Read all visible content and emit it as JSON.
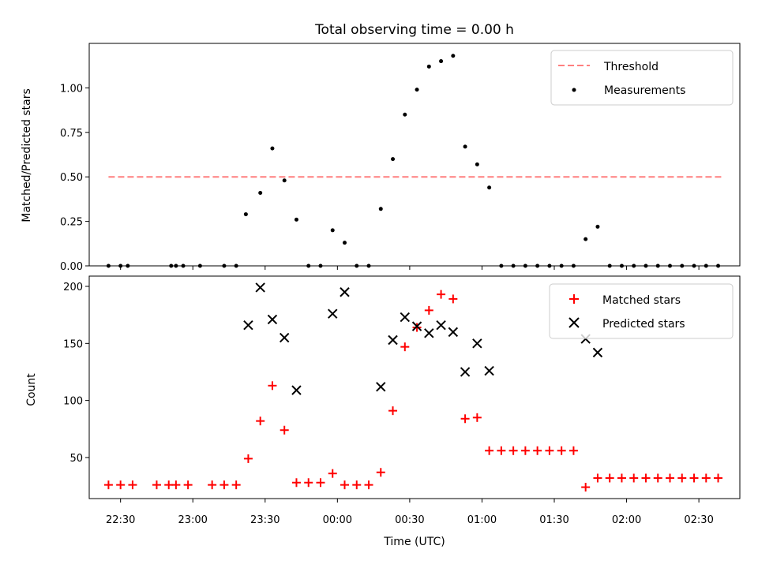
{
  "chart_data": [
    {
      "type": "scatter",
      "title": "Total observing time = 0.00 h",
      "ylabel": "Matched/Predicted stars",
      "xlabel": "",
      "xlim": [
        "22:17",
        "02:47"
      ],
      "ylim": [
        0,
        1.25
      ],
      "yticks": [
        "0.00",
        "0.25",
        "0.50",
        "0.75",
        "1.00"
      ],
      "legend_position": "upper right",
      "threshold": {
        "name": "Threshold",
        "value": 0.5,
        "x_start": "22:25",
        "x_end": "02:40",
        "color": "#ff7f7f",
        "style": "dashed"
      },
      "series": [
        {
          "name": "Measurements",
          "color": "#000000",
          "marker": "dot",
          "points": [
            [
              "22:25",
              0
            ],
            [
              "22:30",
              0
            ],
            [
              "22:33",
              0
            ],
            [
              "22:51",
              0
            ],
            [
              "22:53",
              0
            ],
            [
              "22:56",
              0
            ],
            [
              "23:03",
              0
            ],
            [
              "23:13",
              0
            ],
            [
              "23:18",
              0
            ],
            [
              "23:22",
              0.29
            ],
            [
              "23:28",
              0.41
            ],
            [
              "23:33",
              0.66
            ],
            [
              "23:38",
              0.48
            ],
            [
              "23:43",
              0.26
            ],
            [
              "23:48",
              0
            ],
            [
              "23:53",
              0
            ],
            [
              "23:58",
              0.2
            ],
            [
              "00:03",
              0.13
            ],
            [
              "00:08",
              0
            ],
            [
              "00:13",
              0
            ],
            [
              "00:18",
              0.32
            ],
            [
              "00:23",
              0.6
            ],
            [
              "00:28",
              0.85
            ],
            [
              "00:33",
              0.99
            ],
            [
              "00:38",
              1.12
            ],
            [
              "00:43",
              1.15
            ],
            [
              "00:48",
              1.18
            ],
            [
              "00:53",
              0.67
            ],
            [
              "00:58",
              0.57
            ],
            [
              "01:03",
              0.44
            ],
            [
              "01:08",
              0
            ],
            [
              "01:13",
              0
            ],
            [
              "01:18",
              0
            ],
            [
              "01:23",
              0
            ],
            [
              "01:28",
              0
            ],
            [
              "01:33",
              0
            ],
            [
              "01:38",
              0
            ],
            [
              "01:43",
              0.15
            ],
            [
              "01:48",
              0.22
            ],
            [
              "01:53",
              0
            ],
            [
              "01:58",
              0
            ],
            [
              "02:03",
              0
            ],
            [
              "02:08",
              0
            ],
            [
              "02:13",
              0
            ],
            [
              "02:18",
              0
            ],
            [
              "02:23",
              0
            ],
            [
              "02:28",
              0
            ],
            [
              "02:33",
              0
            ],
            [
              "02:38",
              0
            ]
          ]
        }
      ]
    },
    {
      "type": "scatter",
      "title": "",
      "ylabel": "Count",
      "xlabel": "Time (UTC)",
      "xlim": [
        "22:17",
        "02:47"
      ],
      "ylim": [
        14,
        209
      ],
      "yticks": [
        "50",
        "100",
        "150",
        "200"
      ],
      "xticks": [
        "22:30",
        "23:00",
        "23:30",
        "00:00",
        "00:30",
        "01:00",
        "01:30",
        "02:00",
        "02:30"
      ],
      "legend_position": "upper right",
      "series": [
        {
          "name": "Matched stars",
          "color": "#ff0000",
          "marker": "plus",
          "points": [
            [
              "22:25",
              26
            ],
            [
              "22:30",
              26
            ],
            [
              "22:35",
              26
            ],
            [
              "22:45",
              26
            ],
            [
              "22:50",
              26
            ],
            [
              "22:53",
              26
            ],
            [
              "22:58",
              26
            ],
            [
              "23:08",
              26
            ],
            [
              "23:13",
              26
            ],
            [
              "23:18",
              26
            ],
            [
              "23:23",
              49
            ],
            [
              "23:28",
              82
            ],
            [
              "23:33",
              113
            ],
            [
              "23:38",
              74
            ],
            [
              "23:43",
              28
            ],
            [
              "23:48",
              28
            ],
            [
              "23:53",
              28
            ],
            [
              "23:58",
              36
            ],
            [
              "00:03",
              26
            ],
            [
              "00:08",
              26
            ],
            [
              "00:13",
              26
            ],
            [
              "00:18",
              37
            ],
            [
              "00:23",
              91
            ],
            [
              "00:28",
              147
            ],
            [
              "00:33",
              164
            ],
            [
              "00:38",
              179
            ],
            [
              "00:43",
              193
            ],
            [
              "00:48",
              189
            ],
            [
              "00:53",
              84
            ],
            [
              "00:58",
              85
            ],
            [
              "01:03",
              56
            ],
            [
              "01:08",
              56
            ],
            [
              "01:13",
              56
            ],
            [
              "01:18",
              56
            ],
            [
              "01:23",
              56
            ],
            [
              "01:28",
              56
            ],
            [
              "01:33",
              56
            ],
            [
              "01:38",
              56
            ],
            [
              "01:43",
              24
            ],
            [
              "01:48",
              32
            ],
            [
              "01:53",
              32
            ],
            [
              "01:58",
              32
            ],
            [
              "02:03",
              32
            ],
            [
              "02:08",
              32
            ],
            [
              "02:13",
              32
            ],
            [
              "02:18",
              32
            ],
            [
              "02:23",
              32
            ],
            [
              "02:28",
              32
            ],
            [
              "02:33",
              32
            ],
            [
              "02:38",
              32
            ]
          ]
        },
        {
          "name": "Predicted stars",
          "color": "#000000",
          "marker": "x",
          "points": [
            [
              "23:23",
              166
            ],
            [
              "23:28",
              199
            ],
            [
              "23:33",
              171
            ],
            [
              "23:38",
              155
            ],
            [
              "23:43",
              109
            ],
            [
              "23:58",
              176
            ],
            [
              "00:03",
              195
            ],
            [
              "00:18",
              112
            ],
            [
              "00:23",
              153
            ],
            [
              "00:28",
              173
            ],
            [
              "00:33",
              165
            ],
            [
              "00:38",
              159
            ],
            [
              "00:43",
              166
            ],
            [
              "00:48",
              160
            ],
            [
              "00:53",
              125
            ],
            [
              "00:58",
              150
            ],
            [
              "01:03",
              126
            ],
            [
              "01:43",
              154
            ],
            [
              "01:48",
              142
            ]
          ]
        }
      ]
    }
  ]
}
